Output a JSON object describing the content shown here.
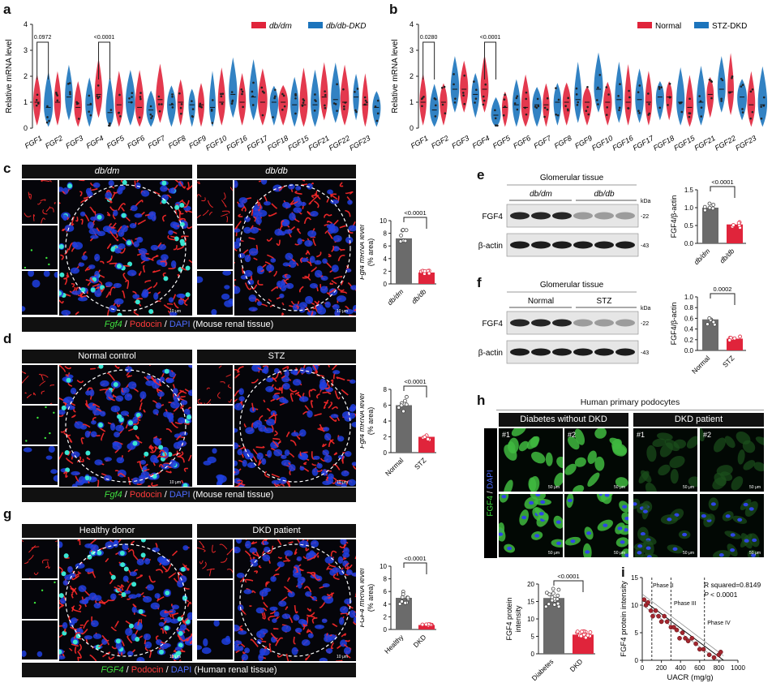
{
  "panels": {
    "a": {
      "label": "a",
      "ylabel": "Relative mRNA level",
      "yticks": [
        "0",
        "1",
        "2",
        "3",
        "4"
      ],
      "legend": [
        {
          "name": "db/dm",
          "color": "#e0243b"
        },
        {
          "name": "db/db-DKD",
          "color": "#1c74bc"
        }
      ],
      "genes": [
        "FGF1",
        "FGF2",
        "FGF3",
        "FGF4",
        "FGF5",
        "FGF6",
        "FGF7",
        "FGF8",
        "FGF9",
        "FGF10",
        "FGF16",
        "FGF17",
        "FGF18",
        "FGF15",
        "FGF21",
        "FGF22",
        "FGF23"
      ],
      "pvalues": [
        "0.0972",
        "<0.0001"
      ]
    },
    "b": {
      "label": "b",
      "ylabel": "Relative mRNA level",
      "yticks": [
        "0",
        "1",
        "2",
        "3",
        "4"
      ],
      "legend": [
        {
          "name": "Normal",
          "color": "#e0243b"
        },
        {
          "name": "STZ-DKD",
          "color": "#1c74bc"
        }
      ],
      "genes": [
        "FGF1",
        "FGF2",
        "FGF3",
        "FGF4",
        "FGF5",
        "FGF6",
        "FGF7",
        "FGF8",
        "FGF9",
        "FGF10",
        "FGF16",
        "FGF17",
        "FGF18",
        "FGF15",
        "FGF21",
        "FGF22",
        "FGF23"
      ],
      "pvalues": [
        "0.0280",
        "<0.0001"
      ]
    },
    "c": {
      "label": "c",
      "left_title": "db/dm",
      "right_title": "db/db",
      "footer": {
        "gene": "Fgf4",
        "sep1": " / ",
        "marker": "Podocin",
        "sep2": " / ",
        "dapi": "DAPI",
        "tissue": " (Mouse renal tissue)"
      },
      "scale": "10 μm",
      "bar": {
        "ylabel1": "Fgf4 mRNA level",
        "ylabel2": "(% area)",
        "yticks": [
          "0",
          "2",
          "4",
          "6",
          "8",
          "10"
        ],
        "categories": [
          "db/dm",
          "db/db"
        ],
        "pvalue": "<0.0001"
      }
    },
    "d": {
      "label": "d",
      "left_title": "Normal control",
      "right_title": "STZ",
      "footer": {
        "gene": "Fgf4",
        "sep1": " / ",
        "marker": "Podocin",
        "sep2": " / ",
        "dapi": "DAPI",
        "tissue": " (Mouse renal tissue)"
      },
      "scale": "10 μm",
      "bar": {
        "ylabel1": "Fgf4 mRNA level",
        "ylabel2": "(% area)",
        "yticks": [
          "0",
          "2",
          "4",
          "6",
          "8"
        ],
        "categories": [
          "Normal",
          "STZ"
        ],
        "pvalue": "<0.0001"
      }
    },
    "g": {
      "label": "g",
      "left_title": "Healthy donor",
      "right_title": "DKD patient",
      "footer": {
        "gene": "FGF4",
        "sep1": " / ",
        "marker": "Podocin",
        "sep2": " / ",
        "dapi": "DAPI",
        "tissue": " (Human renal tissue)"
      },
      "scale": "10 μm",
      "bar": {
        "ylabel1": "FGF4 mRNA level",
        "ylabel2": "(% area)",
        "yticks": [
          "0",
          "2",
          "4",
          "6",
          "8",
          "10"
        ],
        "categories": [
          "Healthy",
          "DKD"
        ],
        "pvalue": "<0.0001"
      }
    },
    "e": {
      "label": "e",
      "title": "Glomerular tissue",
      "groups": [
        "db/dm",
        "db/db"
      ],
      "kda": "kDa",
      "rows": [
        {
          "name": "FGF4",
          "kda": "22"
        },
        {
          "name": "β-actin",
          "kda": "43"
        }
      ],
      "bar": {
        "ylabel": "FGF4/β-actin",
        "yticks": [
          "0.0",
          "0.5",
          "1.0",
          "1.5"
        ],
        "categories": [
          "db/dm",
          "db/db"
        ],
        "pvalue": "<0.0001"
      }
    },
    "f": {
      "label": "f",
      "title": "Glomerular tissue",
      "groups": [
        "Normal",
        "STZ"
      ],
      "kda": "kDa",
      "rows": [
        {
          "name": "FGF4",
          "kda": "22"
        },
        {
          "name": "β-actin",
          "kda": "43"
        }
      ],
      "bar": {
        "ylabel": "FGF4/β-actin",
        "yticks": [
          "0.0",
          "0.2",
          "0.4",
          "0.6",
          "0.8",
          "1.0"
        ],
        "categories": [
          "Normal",
          "STZ"
        ],
        "pvalue": "0.0002"
      }
    },
    "h": {
      "label": "h",
      "title": "Human primary podocytes",
      "left_title": "Diabetes without DKD",
      "right_title": "DKD patient",
      "side_gene": "FGF4",
      "side_sep": " / ",
      "side_dapi": "DAPI",
      "ids": [
        "#1",
        "#2",
        "#1",
        "#2"
      ],
      "scale": "50 μm",
      "bar": {
        "ylabel1": "FGF4 protein",
        "ylabel2": "intensity",
        "yticks": [
          "0",
          "5",
          "10",
          "15",
          "20"
        ],
        "categories": [
          "Diabetes",
          "DKD"
        ],
        "pvalue": "<0.0001"
      }
    },
    "i": {
      "label": "i",
      "ylabel": "FGF4 protein intensity",
      "xlabel": "UACR (mg/g)",
      "xticks": [
        "0",
        "200",
        "400",
        "600",
        "800",
        "1000"
      ],
      "yticks": [
        "0",
        "5",
        "10",
        "15"
      ],
      "phases": [
        "Phase II",
        "Phase III",
        "Phase IV"
      ],
      "r2": "R squared=0.8149",
      "p_label": "P",
      "p_value": " < 0.0001"
    }
  },
  "chart_data": [
    {
      "type": "violin",
      "panel": "a",
      "categories": [
        "FGF1",
        "FGF2",
        "FGF3",
        "FGF4",
        "FGF5",
        "FGF6",
        "FGF7",
        "FGF8",
        "FGF9",
        "FGF10",
        "FGF16",
        "FGF17",
        "FGF18",
        "FGF15",
        "FGF21",
        "FGF22",
        "FGF23"
      ],
      "series": [
        {
          "name": "db/dm",
          "color": "#e0243b",
          "values": [
            1.0,
            1.0,
            0.8,
            1.3,
            0.9,
            0.8,
            1.1,
            1.0,
            0.9,
            1.0,
            1.0,
            1.0,
            1.0,
            0.9,
            1.2,
            1.0,
            0.9
          ]
        },
        {
          "name": "db/db-DKD",
          "color": "#1c74bc",
          "values": [
            0.8,
            1.2,
            0.9,
            0.6,
            1.0,
            0.7,
            0.9,
            0.9,
            0.8,
            1.3,
            1.2,
            1.0,
            0.9,
            0.9,
            1.1,
            1.2,
            0.8
          ]
        }
      ],
      "ylim": [
        0,
        4
      ]
    },
    {
      "type": "violin",
      "panel": "b",
      "categories": [
        "FGF1",
        "FGF2",
        "FGF3",
        "FGF4",
        "FGF5",
        "FGF6",
        "FGF7",
        "FGF8",
        "FGF9",
        "FGF10",
        "FGF16",
        "FGF17",
        "FGF18",
        "FGF15",
        "FGF21",
        "FGF22",
        "FGF23"
      ],
      "series": [
        {
          "name": "Normal",
          "color": "#e0243b",
          "values": [
            1.0,
            1.0,
            1.5,
            1.5,
            0.8,
            0.8,
            0.9,
            1.0,
            1.0,
            1.0,
            1.0,
            1.0,
            1.2,
            0.8,
            1.3,
            1.4,
            0.9
          ]
        },
        {
          "name": "STZ-DKD",
          "color": "#1c74bc",
          "values": [
            0.7,
            1.5,
            1.3,
            0.5,
            0.9,
            0.9,
            1.0,
            1.1,
            1.5,
            1.1,
            1.1,
            1.2,
            1.0,
            1.0,
            1.5,
            1.2,
            0.9
          ]
        }
      ],
      "ylim": [
        0,
        4
      ]
    },
    {
      "type": "bar",
      "panel": "c",
      "categories": [
        "db/dm",
        "db/db"
      ],
      "values": [
        7.2,
        1.8
      ],
      "ylim": [
        0,
        10
      ]
    },
    {
      "type": "bar",
      "panel": "d",
      "categories": [
        "Normal",
        "STZ"
      ],
      "values": [
        6.0,
        2.0
      ],
      "ylim": [
        0,
        8
      ]
    },
    {
      "type": "bar",
      "panel": "g",
      "categories": [
        "Healthy",
        "DKD"
      ],
      "values": [
        5.0,
        0.7
      ],
      "ylim": [
        0,
        10
      ]
    },
    {
      "type": "bar",
      "panel": "e",
      "categories": [
        "db/dm",
        "db/db"
      ],
      "values": [
        1.0,
        0.53
      ],
      "ylim": [
        0,
        1.5
      ]
    },
    {
      "type": "bar",
      "panel": "f",
      "categories": [
        "Normal",
        "STZ"
      ],
      "values": [
        0.58,
        0.22
      ],
      "ylim": [
        0,
        1.0
      ]
    },
    {
      "type": "bar",
      "panel": "h",
      "categories": [
        "Diabetes",
        "DKD"
      ],
      "values": [
        16,
        5.5
      ],
      "ylim": [
        0,
        20
      ]
    },
    {
      "type": "scatter",
      "panel": "i",
      "xlim": [
        0,
        1000
      ],
      "ylim": [
        0,
        15
      ],
      "x": [
        20,
        40,
        60,
        90,
        110,
        140,
        170,
        200,
        230,
        260,
        300,
        330,
        360,
        390,
        420,
        450,
        480,
        520,
        560,
        600,
        640,
        700,
        750,
        800,
        820
      ],
      "y": [
        11,
        10,
        10.5,
        9,
        8,
        9,
        8,
        7,
        8,
        7,
        6,
        6,
        5.5,
        4,
        5,
        4,
        3.5,
        4,
        3,
        2,
        2,
        1,
        0.5,
        1,
        1.5
      ]
    }
  ]
}
